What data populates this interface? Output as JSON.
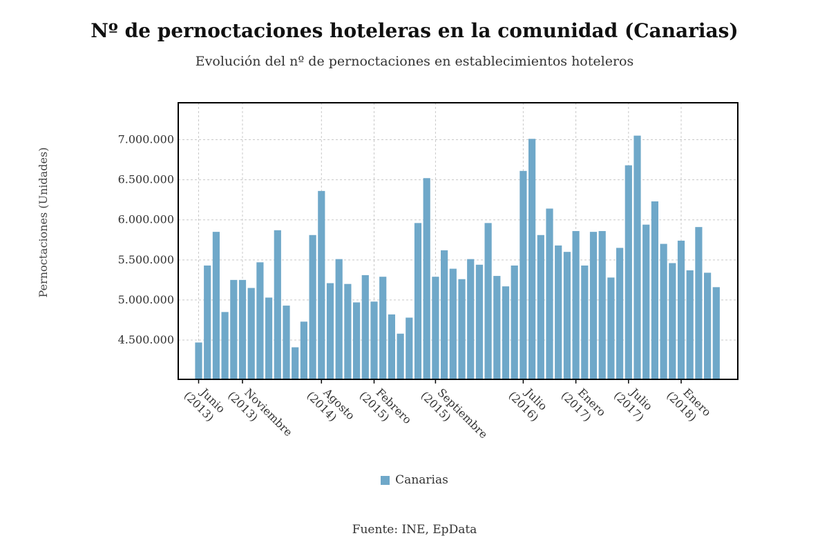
{
  "title": "Nº de pernoctaciones hoteleras en la comunidad (Canarias)",
  "subtitle": "Evolución del nº de pernoctaciones en establecimientos hoteleros",
  "source": "Fuente: INE, EpData",
  "colors": {
    "bar": "#6fa8c9",
    "grid": "#c8c8c8",
    "frame": "#000000"
  },
  "chart_data": {
    "type": "bar",
    "title": "Nº de pernoctaciones hoteleras en la comunidad (Canarias)",
    "subtitle": "Evolución del nº de pernoctaciones en establecimientos hoteleros",
    "xlabel": "",
    "ylabel": "Pernoctaciones (Unidades)",
    "ylim": [
      4010000,
      7460000
    ],
    "yticks": [
      4500000,
      5000000,
      5500000,
      6000000,
      6500000,
      7000000
    ],
    "ytick_labels": [
      "4.500.000",
      "5.000.000",
      "5.500.000",
      "6.000.000",
      "6.500.000",
      "7.000.000"
    ],
    "grid": true,
    "legend": "bottom-center",
    "xtick_labels": [
      {
        "index": 0,
        "line1": "Junio",
        "line2": "(2013)"
      },
      {
        "index": 5,
        "line1": "Noviembre",
        "line2": "(2013)"
      },
      {
        "index": 14,
        "line1": "Agosto",
        "line2": "(2014)"
      },
      {
        "index": 20,
        "line1": "Febrero",
        "line2": "(2015)"
      },
      {
        "index": 27,
        "line1": "Septiembre",
        "line2": "(2015)"
      },
      {
        "index": 37,
        "line1": "Julio",
        "line2": "(2016)"
      },
      {
        "index": 43,
        "line1": "Enero",
        "line2": "(2017)"
      },
      {
        "index": 49,
        "line1": "Julio",
        "line2": "(2017)"
      },
      {
        "index": 55,
        "line1": "Enero",
        "line2": "(2018)"
      }
    ],
    "categories": [
      "Jun 2013",
      "Jul 2013",
      "Ago 2013",
      "Sep 2013",
      "Oct 2013",
      "Nov 2013",
      "Dic 2013",
      "Ene 2014",
      "Feb 2014",
      "Mar 2014",
      "Abr 2014",
      "May 2014",
      "Jun 2014",
      "Jul 2014",
      "Ago 2014",
      "Sep 2014",
      "Oct 2014",
      "Nov 2014",
      "Dic 2014",
      "Ene 2015",
      "Feb 2015",
      "Mar 2015",
      "Abr 2015",
      "May 2015",
      "Jun 2015",
      "Jul 2015",
      "Ago 2015",
      "Sep 2015",
      "Oct 2015",
      "Nov 2015",
      "Dic 2015",
      "Ene 2016",
      "Feb 2016",
      "Mar 2016",
      "Abr 2016",
      "May 2016",
      "Jun 2016",
      "Jul 2016",
      "Ago 2016",
      "Sep 2016",
      "Oct 2016",
      "Nov 2016",
      "Dic 2016",
      "Ene 2017",
      "Feb 2017",
      "Mar 2017",
      "Abr 2017",
      "May 2017",
      "Jun 2017",
      "Jul 2017",
      "Ago 2017",
      "Sep 2017",
      "Oct 2017",
      "Nov 2017",
      "Dic 2017",
      "Ene 2018",
      "Feb 2018",
      "Mar 2018",
      "Abr 2018",
      "May 2018"
    ],
    "series": [
      {
        "name": "Canarias",
        "values": [
          4470000,
          5430000,
          5850000,
          4850000,
          5250000,
          5250000,
          5150000,
          5470000,
          5030000,
          5870000,
          4930000,
          4410000,
          4730000,
          5810000,
          6360000,
          5210000,
          5510000,
          5200000,
          4970000,
          5310000,
          4980000,
          5290000,
          4820000,
          4580000,
          4780000,
          5960000,
          6520000,
          5290000,
          5620000,
          5390000,
          5260000,
          5510000,
          5440000,
          5960000,
          5300000,
          5170000,
          5430000,
          6610000,
          7010000,
          5810000,
          6140000,
          5680000,
          5600000,
          5860000,
          5430000,
          5850000,
          5860000,
          5280000,
          5650000,
          6680000,
          7050000,
          5940000,
          6230000,
          5700000,
          5460000,
          5740000,
          5370000,
          5910000,
          5340000,
          5160000
        ]
      }
    ]
  }
}
